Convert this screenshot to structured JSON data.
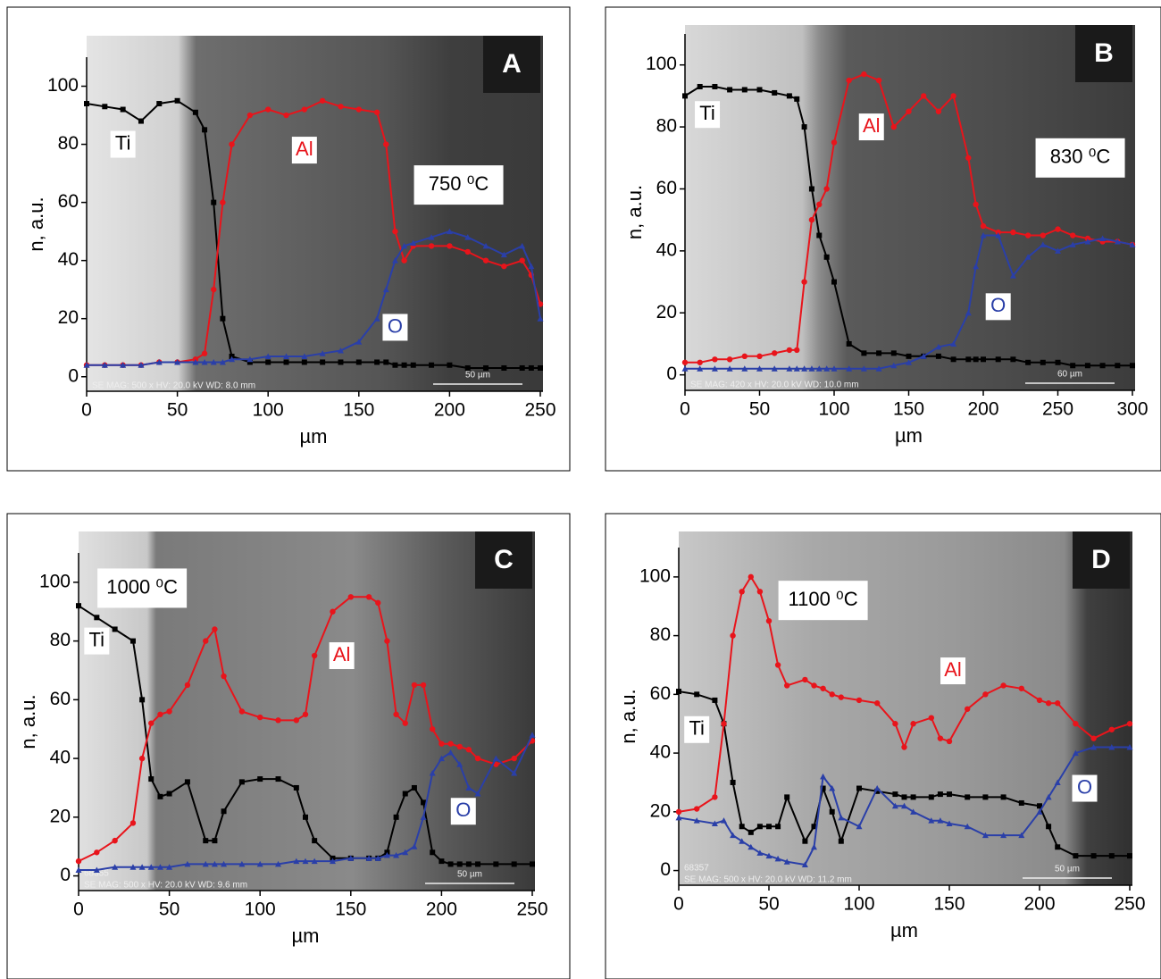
{
  "chart_data": [
    {
      "type": "line",
      "panel": "A",
      "annotation": "750 ⁰C",
      "xlabel": "µm",
      "ylabel": "n, a.u.",
      "sem_info": "SE MAG: 500 x HV: 20.0 kV WD: 8.0 mm",
      "scale_bar": "50 µm",
      "xlim": [
        0,
        250
      ],
      "ylim": [
        -5,
        110
      ],
      "xticks": [
        0,
        50,
        100,
        150,
        200,
        250
      ],
      "yticks": [
        0,
        20,
        40,
        60,
        80,
        100
      ],
      "x": [
        0,
        10,
        20,
        30,
        40,
        50,
        60,
        65,
        70,
        75,
        80,
        90,
        100,
        110,
        120,
        130,
        140,
        150,
        160,
        165,
        170,
        175,
        180,
        190,
        200,
        210,
        220,
        230,
        240,
        245,
        250
      ],
      "series": [
        {
          "name": "Ti",
          "color": "#000000",
          "values": [
            94,
            93,
            92,
            88,
            94,
            95,
            91,
            85,
            60,
            20,
            7,
            5,
            5,
            5,
            5,
            5,
            5,
            5,
            5,
            5,
            4,
            4,
            4,
            4,
            4,
            3,
            3,
            3,
            3,
            3,
            3
          ]
        },
        {
          "name": "Al",
          "color": "#e8141b",
          "values": [
            4,
            4,
            4,
            4,
            5,
            5,
            6,
            8,
            30,
            60,
            80,
            90,
            92,
            90,
            92,
            95,
            93,
            92,
            91,
            80,
            50,
            40,
            45,
            45,
            45,
            43,
            40,
            38,
            40,
            35,
            25
          ]
        },
        {
          "name": "O",
          "color": "#2a3fa8",
          "values": [
            4,
            4,
            4,
            4,
            5,
            5,
            5,
            5,
            5,
            5,
            6,
            6,
            7,
            7,
            7,
            8,
            9,
            12,
            20,
            30,
            40,
            45,
            46,
            48,
            50,
            48,
            45,
            42,
            45,
            38,
            20
          ]
        }
      ]
    },
    {
      "type": "line",
      "panel": "B",
      "annotation": "830 ⁰C",
      "xlabel": "µm",
      "ylabel": "n, a.u.",
      "sem_info": "SE MAG: 420 x HV: 20.0 kV WD: 10.0 mm",
      "scale_bar": "60 µm",
      "xlim": [
        0,
        300
      ],
      "ylim": [
        -5,
        110
      ],
      "xticks": [
        0,
        50,
        100,
        150,
        200,
        250,
        300
      ],
      "yticks": [
        0,
        20,
        40,
        60,
        80,
        100
      ],
      "x": [
        0,
        10,
        20,
        30,
        40,
        50,
        60,
        70,
        75,
        80,
        85,
        90,
        95,
        100,
        110,
        120,
        130,
        140,
        150,
        160,
        170,
        180,
        190,
        195,
        200,
        210,
        220,
        230,
        240,
        250,
        260,
        270,
        280,
        290,
        300
      ],
      "series": [
        {
          "name": "Ti",
          "color": "#000000",
          "values": [
            90,
            93,
            93,
            92,
            92,
            92,
            91,
            90,
            89,
            80,
            60,
            45,
            38,
            30,
            10,
            7,
            7,
            7,
            6,
            6,
            6,
            5,
            5,
            5,
            5,
            5,
            5,
            4,
            4,
            4,
            3,
            3,
            3,
            3,
            3
          ]
        },
        {
          "name": "Al",
          "color": "#e8141b",
          "values": [
            4,
            4,
            5,
            5,
            6,
            6,
            7,
            8,
            8,
            30,
            50,
            55,
            60,
            75,
            95,
            97,
            95,
            80,
            85,
            90,
            85,
            90,
            70,
            55,
            48,
            46,
            46,
            45,
            45,
            47,
            45,
            44,
            43,
            43,
            42
          ]
        },
        {
          "name": "O",
          "color": "#2a3fa8",
          "values": [
            2,
            2,
            2,
            2,
            2,
            2,
            2,
            2,
            2,
            2,
            2,
            2,
            2,
            2,
            2,
            2,
            2,
            3,
            4,
            6,
            9,
            10,
            20,
            35,
            45,
            45,
            32,
            38,
            42,
            40,
            42,
            43,
            44,
            43,
            42
          ]
        }
      ]
    },
    {
      "type": "line",
      "panel": "C",
      "annotation": "1000 ⁰C",
      "xlabel": "µm",
      "ylabel": "n, a.u.",
      "sem_info": "SE MAG: 500 x HV: 20.0 kV WD: 9.6 mm",
      "scale_bar": "50 µm",
      "image_id": "68355",
      "xlim": [
        0,
        250
      ],
      "ylim": [
        -5,
        110
      ],
      "xticks": [
        0,
        50,
        100,
        150,
        200,
        250
      ],
      "yticks": [
        0,
        20,
        40,
        60,
        80,
        100
      ],
      "x": [
        0,
        10,
        20,
        30,
        35,
        40,
        45,
        50,
        60,
        70,
        75,
        80,
        90,
        100,
        110,
        120,
        125,
        130,
        140,
        150,
        160,
        165,
        170,
        175,
        180,
        185,
        190,
        195,
        200,
        205,
        210,
        215,
        220,
        230,
        240,
        250
      ],
      "series": [
        {
          "name": "Ti",
          "color": "#000000",
          "values": [
            92,
            88,
            84,
            80,
            60,
            33,
            27,
            28,
            32,
            12,
            12,
            22,
            32,
            33,
            33,
            30,
            20,
            12,
            6,
            6,
            6,
            6,
            8,
            20,
            28,
            30,
            25,
            8,
            5,
            4,
            4,
            4,
            4,
            4,
            4,
            4
          ]
        },
        {
          "name": "Al",
          "color": "#e8141b",
          "values": [
            5,
            8,
            12,
            18,
            40,
            52,
            55,
            56,
            65,
            80,
            84,
            68,
            56,
            54,
            53,
            53,
            55,
            75,
            90,
            95,
            95,
            93,
            80,
            55,
            52,
            65,
            65,
            50,
            45,
            45,
            44,
            43,
            40,
            38,
            40,
            46
          ]
        },
        {
          "name": "O",
          "color": "#2a3fa8",
          "values": [
            2,
            2,
            3,
            3,
            3,
            3,
            3,
            3,
            4,
            4,
            4,
            4,
            4,
            4,
            4,
            5,
            5,
            5,
            5,
            6,
            6,
            6,
            7,
            7,
            8,
            10,
            20,
            35,
            40,
            42,
            38,
            30,
            28,
            40,
            35,
            48
          ]
        }
      ]
    },
    {
      "type": "line",
      "panel": "D",
      "annotation": "1100 ⁰C",
      "xlabel": "µm",
      "ylabel": "n, a.u.",
      "sem_info": "SE MAG: 500 x HV: 20.0 kV WD: 11.2 mm",
      "scale_bar": "50 µm",
      "image_id": "68357",
      "xlim": [
        0,
        250
      ],
      "ylim": [
        -5,
        110
      ],
      "xticks": [
        0,
        50,
        100,
        150,
        200,
        250
      ],
      "yticks": [
        0,
        20,
        40,
        60,
        80,
        100
      ],
      "x": [
        0,
        10,
        20,
        25,
        30,
        35,
        40,
        45,
        50,
        55,
        60,
        70,
        75,
        80,
        85,
        90,
        100,
        110,
        120,
        125,
        130,
        140,
        145,
        150,
        160,
        170,
        180,
        190,
        200,
        205,
        210,
        220,
        230,
        240,
        250
      ],
      "series": [
        {
          "name": "Ti",
          "color": "#000000",
          "values": [
            61,
            60,
            58,
            50,
            30,
            15,
            13,
            15,
            15,
            15,
            25,
            10,
            15,
            28,
            20,
            10,
            28,
            27,
            26,
            25,
            25,
            25,
            26,
            26,
            25,
            25,
            25,
            23,
            22,
            15,
            8,
            5,
            5,
            5,
            5
          ]
        },
        {
          "name": "Al",
          "color": "#e8141b",
          "values": [
            20,
            21,
            25,
            50,
            80,
            95,
            100,
            95,
            85,
            70,
            63,
            65,
            63,
            62,
            60,
            59,
            58,
            57,
            50,
            42,
            50,
            52,
            45,
            44,
            55,
            60,
            63,
            62,
            58,
            57,
            57,
            50,
            45,
            48,
            50
          ]
        },
        {
          "name": "O",
          "color": "#2a3fa8",
          "values": [
            18,
            17,
            16,
            17,
            12,
            10,
            8,
            6,
            5,
            4,
            3,
            2,
            8,
            32,
            28,
            18,
            15,
            28,
            22,
            22,
            20,
            17,
            17,
            16,
            15,
            12,
            12,
            12,
            20,
            25,
            30,
            40,
            42,
            42,
            42
          ]
        }
      ]
    }
  ]
}
